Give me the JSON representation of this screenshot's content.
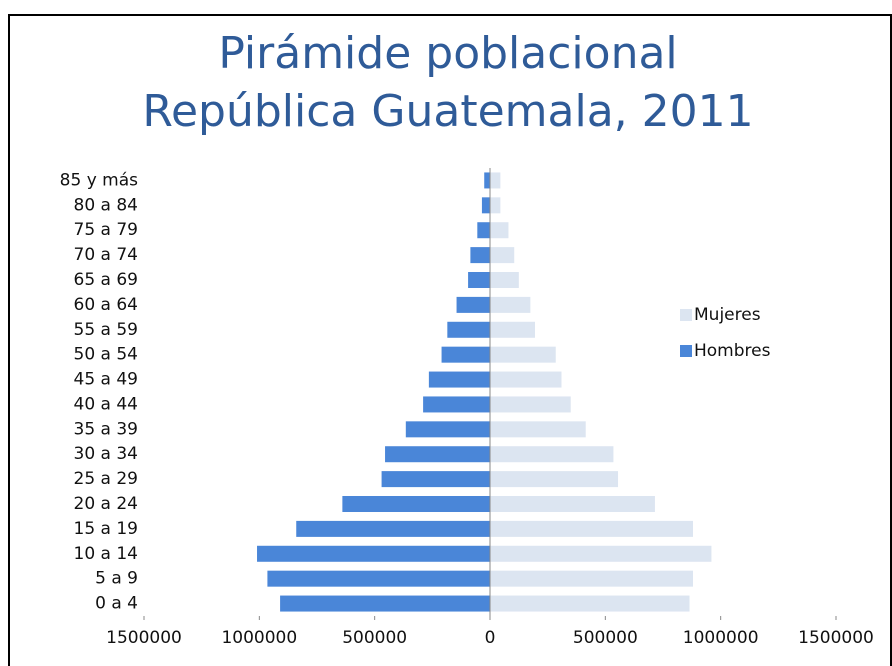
{
  "chart_data": {
    "type": "pyramid",
    "title": [
      "Pirámide poblacional",
      "República Guatemala, 2011"
    ],
    "categories": [
      "0 a 4",
      "5 a 9",
      "10 a 14",
      "15 a 19",
      "20 a 24",
      "25 a 29",
      "30 a 34",
      "35 a 39",
      "40 a 44",
      "45 a 49",
      "50 a 54",
      "55 a 59",
      "60 a 64",
      "65 a 69",
      "70 a 74",
      "75 a 79",
      "80 a 84",
      "85 y más"
    ],
    "series": [
      {
        "name": "Mujeres",
        "color": "#dce5f1",
        "values": [
          865000,
          880000,
          960000,
          880000,
          715000,
          555000,
          535000,
          415000,
          350000,
          310000,
          285000,
          195000,
          175000,
          125000,
          105000,
          80000,
          45000,
          45000
        ]
      },
      {
        "name": "Hombres",
        "color": "#4a86d8",
        "values": [
          -910000,
          -965000,
          -1010000,
          -840000,
          -640000,
          -470000,
          -455000,
          -365000,
          -290000,
          -265000,
          -210000,
          -185000,
          -145000,
          -95000,
          -85000,
          -55000,
          -35000,
          -25000
        ]
      }
    ],
    "xlim": [
      -1500000,
      1500000
    ],
    "xticks": [
      {
        "value": -1500000,
        "label": "1500000"
      },
      {
        "value": -1000000,
        "label": "1000000"
      },
      {
        "value": -500000,
        "label": "500000"
      },
      0,
      500000,
      1000000,
      1500000
    ],
    "legend": "right"
  }
}
